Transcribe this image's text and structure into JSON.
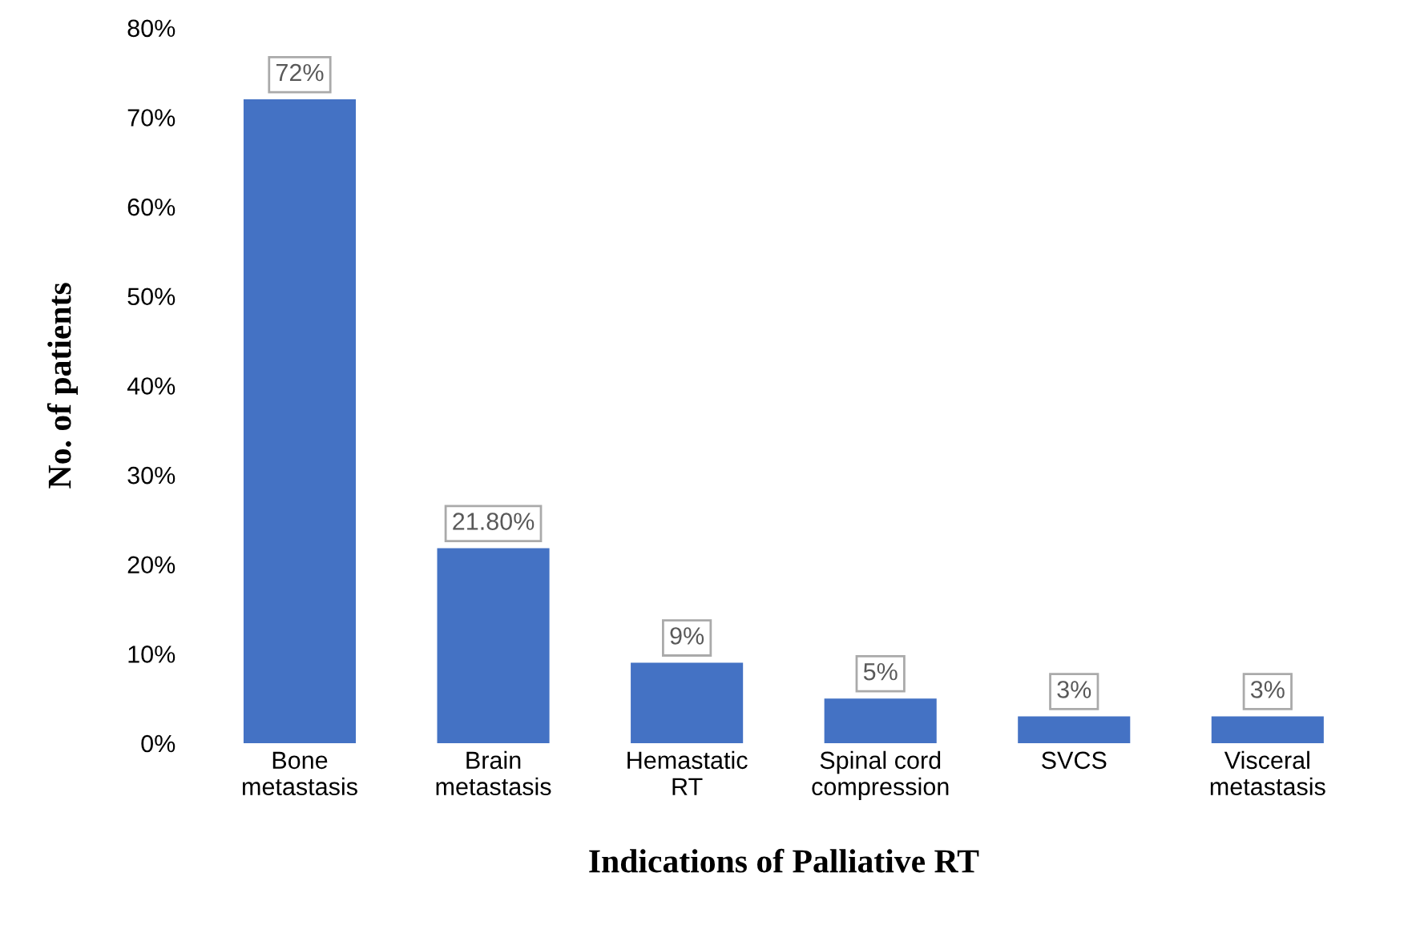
{
  "chart_data": {
    "type": "bar",
    "xlabel": "Indications of Palliative RT",
    "ylabel": "No. of patients",
    "categories": [
      "Bone\nmetastasis",
      "Brain\nmetastasis",
      "Hemastatic\nRT",
      "Spinal cord\ncompression",
      "SVCS",
      "Visceral\nmetastasis"
    ],
    "values": [
      72,
      21.8,
      9,
      5,
      3,
      3
    ],
    "value_labels": [
      "72%",
      "21.80%",
      "9%",
      "5%",
      "3%",
      "3%"
    ],
    "color": "#4472c4",
    "ylim": [
      0,
      80
    ],
    "yticks": [
      {
        "value": 0,
        "label": "0%"
      },
      {
        "value": 10,
        "label": "10%"
      },
      {
        "value": 20,
        "label": "20%"
      },
      {
        "value": 30,
        "label": "30%"
      },
      {
        "value": 40,
        "label": "40%"
      },
      {
        "value": 50,
        "label": "50%"
      },
      {
        "value": 60,
        "label": "60%"
      },
      {
        "value": 70,
        "label": "70%"
      },
      {
        "value": 80,
        "label": "80%"
      }
    ],
    "grid": false,
    "legend": false
  }
}
